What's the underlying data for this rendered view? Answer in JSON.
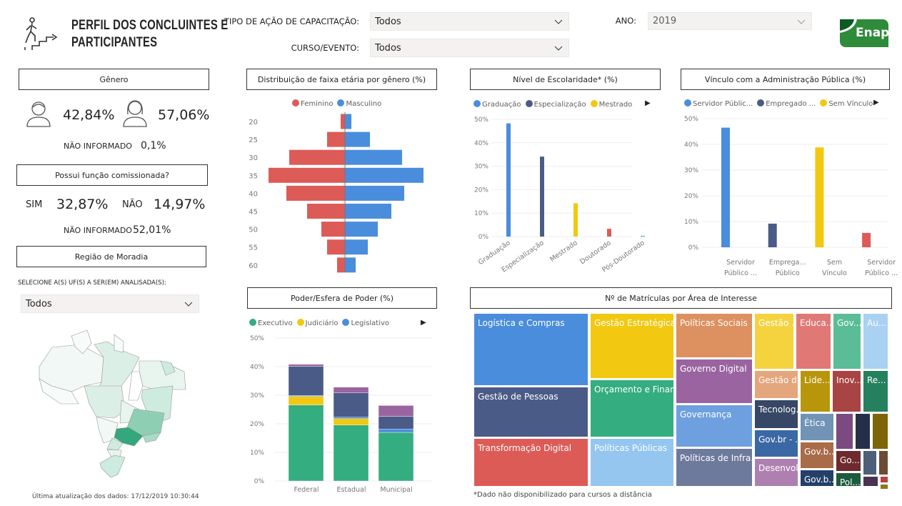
{
  "header": {
    "title_line1": "PERFIL DOS CONCLUINTES E",
    "title_line2": "PARTICIPANTES",
    "logo_text": "Enap",
    "logo_color": "#2e8b3a"
  },
  "filters": {
    "tipo_label": "TIPO DE AÇÃO DE CAPACITAÇÃO:",
    "tipo_value": "Todos",
    "curso_label": "CURSO/EVENTO:",
    "curso_value": "Todos",
    "ano_label": "ANO:",
    "ano_value": "2019"
  },
  "genero": {
    "title": "Gênero",
    "masculino": "42,84%",
    "feminino": "57,06%",
    "nao_informado_label": "NÃO INFORMADO",
    "nao_informado": "0,1%"
  },
  "comissionada": {
    "title": "Possui função comissionada?",
    "sim_label": "SIM",
    "sim": "32,87%",
    "nao_label": "NÃO",
    "nao": "14,97%",
    "nao_informado_label": "NÃO INFORMADO",
    "nao_informado": "52,01%"
  },
  "regiao": {
    "title": "Região de Moradia",
    "select_label": "SELECIONE A(S) UF(S) A SER(EM) ANALISADA(S):",
    "select_value": "Todos"
  },
  "footer": {
    "updated": "Última atualização dos dados: 17/12/2019 10:30:44",
    "note": "*Dado não disponibilizado para cursos a distância"
  },
  "chart_data": [
    {
      "id": "piramide",
      "type": "bar",
      "orientation": "horizontal",
      "title": "Distribuição de faixa etária por gênero (%)",
      "categories": [
        "20",
        "25",
        "30",
        "35",
        "40",
        "45",
        "50",
        "55",
        "60"
      ],
      "series": [
        {
          "name": "Feminino",
          "color": "#dd5b57",
          "values": [
            0.6,
            2.5,
            7.8,
            10.7,
            8.2,
            5.3,
            3.3,
            2.5,
            1.1
          ]
        },
        {
          "name": "Masculino",
          "color": "#4a8ddc",
          "values": [
            0.9,
            3.5,
            8.0,
            11.0,
            8.3,
            6.5,
            4.6,
            3.2,
            1.5
          ]
        }
      ]
    },
    {
      "id": "escolaridade",
      "type": "bar",
      "title": "Nível de Escolaridade* (%)",
      "legend": [
        {
          "name": "Graduação",
          "color": "#4a8ddc"
        },
        {
          "name": "Especialização",
          "color": "#4b5b87"
        },
        {
          "name": "Mestrado",
          "color": "#f2c811"
        }
      ],
      "categories": [
        "Graduação",
        "Especialização",
        "Mestrado",
        "Doutorado",
        "Pós-Doutorado"
      ],
      "colors": [
        "#4a8ddc",
        "#4b5b87",
        "#f2c811",
        "#dd5b57",
        "#34ad80"
      ],
      "values": [
        48.3,
        34.1,
        14.2,
        3.3,
        0.3
      ],
      "ylim": [
        0,
        50
      ],
      "yticks": [
        "0%",
        "10%",
        "20%",
        "30%",
        "40%",
        "50%"
      ]
    },
    {
      "id": "vinculo",
      "type": "bar",
      "title": "Vínculo com a Administração Pública (%)",
      "legend": [
        {
          "name": "Servidor Públic...",
          "color": "#4a8ddc"
        },
        {
          "name": "Empregado ...",
          "color": "#4b5b87"
        },
        {
          "name": "Sem Vínculo",
          "color": "#f2c811"
        }
      ],
      "categories": [
        [
          "Servidor",
          "Público ..."
        ],
        [
          "Emprega...",
          "Público"
        ],
        [
          "Sem",
          "Vínculo"
        ],
        [
          "Servidor",
          "Público ..."
        ]
      ],
      "colors": [
        "#4a8ddc",
        "#4b5b87",
        "#f2c811",
        "#dd5b57"
      ],
      "values": [
        46.5,
        9.2,
        38.8,
        5.6
      ],
      "ylim": [
        0,
        50
      ],
      "yticks": [
        "0%",
        "10%",
        "20%",
        "30%",
        "40%",
        "50%"
      ]
    },
    {
      "id": "poder",
      "type": "bar",
      "stacked": true,
      "title": "Poder/Esfera de Poder (%)",
      "categories": [
        "Federal",
        "Estadual",
        "Municipal"
      ],
      "ylim": [
        0,
        50
      ],
      "yticks": [
        "0%",
        "10%",
        "20%",
        "30%",
        "40%",
        "50%"
      ],
      "series": [
        {
          "name": "Executivo",
          "color": "#34ad80",
          "values": [
            26.6,
            19.6,
            17.0
          ]
        },
        {
          "name": "Judiciário",
          "color": "#f2c811",
          "values": [
            3.0,
            2.2,
            0
          ]
        },
        {
          "name": "Legislativo",
          "color": "#4a8ddc",
          "values": [
            0.3,
            0.5,
            1.2
          ]
        },
        {
          "color": "#4b5b87",
          "values": [
            10.2,
            8.5,
            4.4
          ]
        },
        {
          "color": "#9a64a0",
          "values": [
            0.7,
            2.0,
            3.8
          ]
        }
      ]
    }
  ],
  "treemap": {
    "title": "Nº de Matrículas por Área de Interesse",
    "items": [
      {
        "label": "Logística e Compras",
        "color": "#4a8ddc"
      },
      {
        "label": "Gestão de Pessoas",
        "color": "#4b5b87"
      },
      {
        "label": "Transformação Digital",
        "color": "#dd5b57"
      },
      {
        "label": "Gestão Estratégica",
        "color": "#f2c811"
      },
      {
        "label": "Orçamento e Finan...",
        "color": "#34ad80"
      },
      {
        "label": "Políticas Públicas",
        "color": "#95c6ef"
      },
      {
        "label": "Políticas Sociais",
        "color": "#dd9060"
      },
      {
        "label": "Governo Digital",
        "color": "#9a64a0"
      },
      {
        "label": "Governança",
        "color": "#6ea0e0"
      },
      {
        "label": "Políticas de Infra...",
        "color": "#6e7a9c"
      },
      {
        "label": "Gestão ...",
        "color": "#f4d33f"
      },
      {
        "label": "Educa...",
        "color": "#e07876"
      },
      {
        "label": "Gov....",
        "color": "#5abd98"
      },
      {
        "label": "Au...",
        "color": "#a9d1f2"
      },
      {
        "label": "Gestão d...",
        "color": "#e4a67c"
      },
      {
        "label": "Lide...",
        "color": "#b8960c"
      },
      {
        "label": "Inov...",
        "color": "#a84444"
      },
      {
        "label": "Re...",
        "color": "#25805f"
      },
      {
        "label": "Tecnolog...",
        "color": "#374766"
      },
      {
        "label": "Gov.br - ...",
        "color": "#3a68a4"
      },
      {
        "label": "Desenvol...",
        "color": "#ae80b0"
      },
      {
        "label": "Ética",
        "color": "#7093b6"
      },
      {
        "label": "Gov.b...",
        "color": "#a96c48"
      },
      {
        "label": "Gov.b...",
        "color": "#24406a"
      },
      {
        "label": "",
        "color": "#7b4a80"
      },
      {
        "label": "",
        "color": "#262f4a"
      },
      {
        "label": "",
        "color": "#7d6608"
      },
      {
        "label": "Go...",
        "color": "#6e2a2e"
      },
      {
        "label": "Pol...",
        "color": "#1d5a3e"
      },
      {
        "label": "",
        "color": "#4d6078"
      },
      {
        "label": "",
        "color": "#6d4a34"
      },
      {
        "label": "",
        "color": "#4a3252"
      },
      {
        "label": "",
        "color": "#b84040"
      },
      {
        "label": "",
        "color": "#8a7a10"
      }
    ]
  }
}
